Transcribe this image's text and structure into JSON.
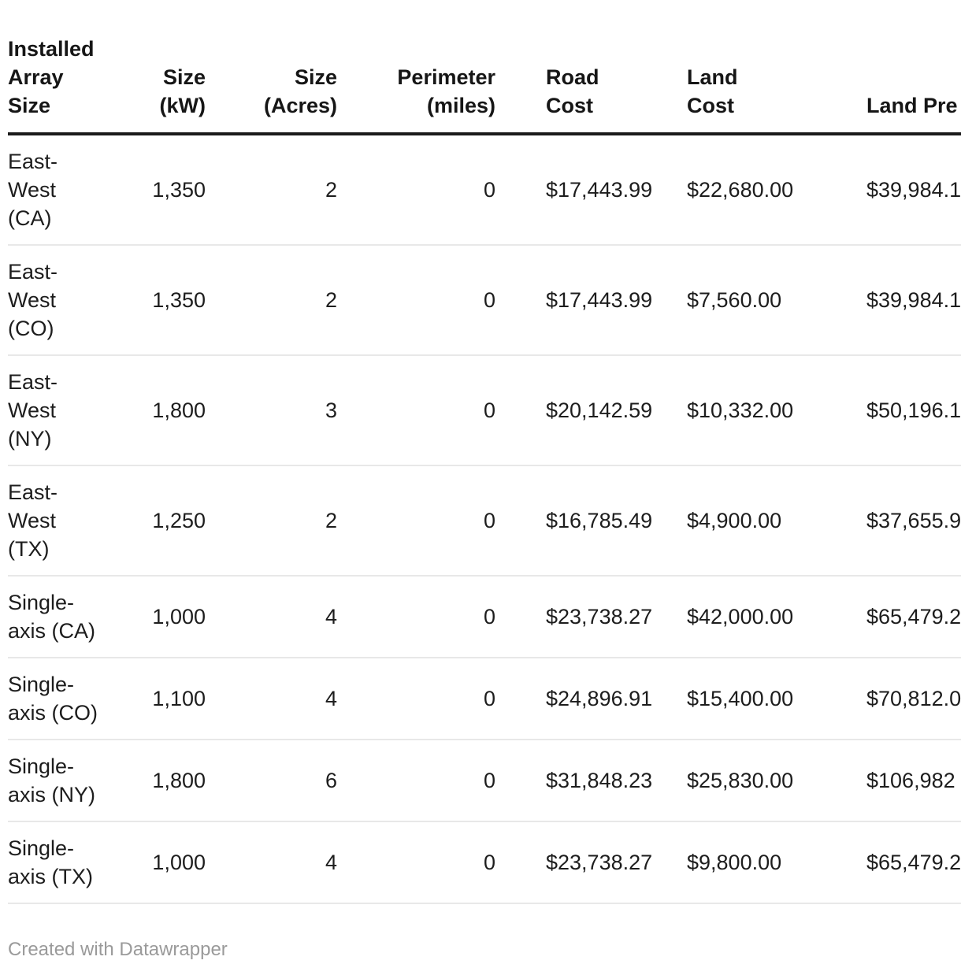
{
  "table": {
    "columns": {
      "label": {
        "header": "Installed\nArray\nSize"
      },
      "size_kw": {
        "header": "Size\n(kW)"
      },
      "size_acres": {
        "header": "Size\n(Acres)"
      },
      "perimeter": {
        "header": "Perimeter\n(miles)"
      },
      "road_cost": {
        "header": "Road\nCost"
      },
      "land_cost": {
        "header": "Land\nCost"
      },
      "land_prep": {
        "header": "Land Pre"
      }
    },
    "rows": [
      {
        "label": "East-\nWest\n(CA)",
        "size_kw": "1,350",
        "size_acres": "2",
        "perimeter": "0",
        "road_cost": "$17,443.99",
        "land_cost": "$22,680.00",
        "land_prep": "$39,984.1"
      },
      {
        "label": "East-\nWest\n(CO)",
        "size_kw": "1,350",
        "size_acres": "2",
        "perimeter": "0",
        "road_cost": "$17,443.99",
        "land_cost": "$7,560.00",
        "land_prep": "$39,984.1"
      },
      {
        "label": "East-\nWest\n(NY)",
        "size_kw": "1,800",
        "size_acres": "3",
        "perimeter": "0",
        "road_cost": "$20,142.59",
        "land_cost": "$10,332.00",
        "land_prep": "$50,196.1"
      },
      {
        "label": "East-\nWest\n(TX)",
        "size_kw": "1,250",
        "size_acres": "2",
        "perimeter": "0",
        "road_cost": "$16,785.49",
        "land_cost": "$4,900.00",
        "land_prep": "$37,655.9"
      },
      {
        "label": "Single-\naxis (CA)",
        "size_kw": "1,000",
        "size_acres": "4",
        "perimeter": "0",
        "road_cost": "$23,738.27",
        "land_cost": "$42,000.00",
        "land_prep": "$65,479.2"
      },
      {
        "label": "Single-\naxis (CO)",
        "size_kw": "1,100",
        "size_acres": "4",
        "perimeter": "0",
        "road_cost": "$24,896.91",
        "land_cost": "$15,400.00",
        "land_prep": "$70,812.0"
      },
      {
        "label": "Single-\naxis (NY)",
        "size_kw": "1,800",
        "size_acres": "6",
        "perimeter": "0",
        "road_cost": "$31,848.23",
        "land_cost": "$25,830.00",
        "land_prep": "$106,982"
      },
      {
        "label": "Single-\naxis (TX)",
        "size_kw": "1,000",
        "size_acres": "4",
        "perimeter": "0",
        "road_cost": "$23,738.27",
        "land_cost": "$9,800.00",
        "land_prep": "$65,479.2"
      }
    ]
  },
  "footer": {
    "credit": "Created with Datawrapper"
  },
  "colors": {
    "text": "#1d1d1d",
    "header_rule": "#1a1a1a",
    "row_rule": "#e8e8e8",
    "footer_text": "#9a9a9a",
    "background": "#ffffff"
  },
  "chart_data": {
    "type": "table",
    "title": "",
    "columns": [
      "Installed Array Size",
      "Size (kW)",
      "Size (Acres)",
      "Perimeter (miles)",
      "Road Cost",
      "Land Cost",
      "Land Pre…"
    ],
    "rows": [
      [
        "East-West (CA)",
        1350,
        2,
        0,
        17443.99,
        22680.0,
        "39984.1…"
      ],
      [
        "East-West (CO)",
        1350,
        2,
        0,
        17443.99,
        7560.0,
        "39984.1…"
      ],
      [
        "East-West (NY)",
        1800,
        3,
        0,
        20142.59,
        10332.0,
        "50196.1…"
      ],
      [
        "East-West (TX)",
        1250,
        2,
        0,
        16785.49,
        4900.0,
        "37655.9…"
      ],
      [
        "Single-axis (CA)",
        1000,
        4,
        0,
        23738.27,
        42000.0,
        "65479.2…"
      ],
      [
        "Single-axis (CO)",
        1100,
        4,
        0,
        24896.91,
        15400.0,
        "70812.0…"
      ],
      [
        "Single-axis (NY)",
        1800,
        6,
        0,
        31848.23,
        25830.0,
        "106982…"
      ],
      [
        "Single-axis (TX)",
        1000,
        4,
        0,
        23738.27,
        9800.0,
        "65479.2…"
      ]
    ],
    "notes": "Last column clipped at right edge of viewport; table rendered with Datawrapper"
  }
}
